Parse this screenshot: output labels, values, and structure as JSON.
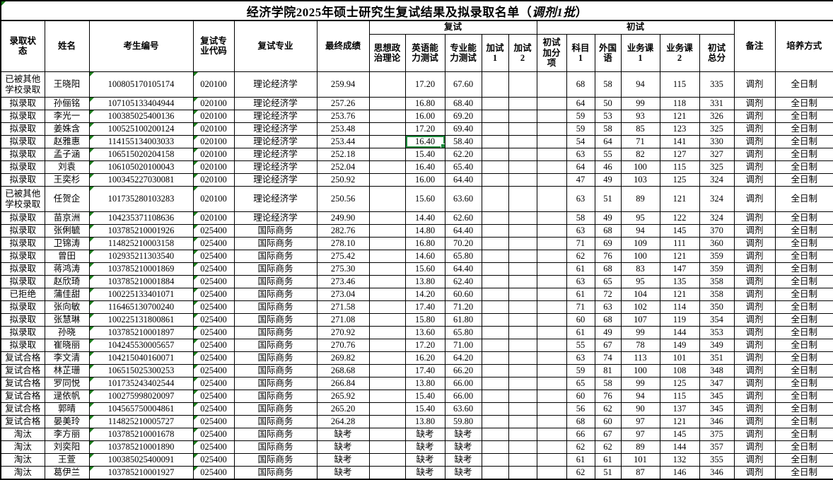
{
  "title": {
    "text": "经济学院2025年硕士研究生复试结果及拟录取名单",
    "open": "（",
    "batch": "调剂1批",
    "close": "）"
  },
  "colors": {
    "selection_border_green": "#1e8b3e",
    "indicator_triangle_green": "#1d7f1d",
    "grid_line": "#000000"
  },
  "header": {
    "left": [
      "录取状\n态",
      "姓名",
      "考生编号",
      "复试专\n业代码",
      "复试专业",
      "最终成绩"
    ],
    "groups": [
      {
        "label": "复试",
        "cols": [
          "思想政\n治理论",
          "英语能\n力测试",
          "专业能\n力测试",
          "加试\n1",
          "加试\n2"
        ]
      },
      {
        "label": "初试",
        "cols": [
          "初试\n加分\n项",
          "科目\n1",
          "外国\n语",
          "业务课\n1",
          "业务课\n2",
          "初试\n总分"
        ]
      }
    ],
    "right": [
      "备注",
      "培养方式"
    ]
  },
  "selection": {
    "row_index": 4,
    "field": "eng",
    "value": "16.40"
  },
  "rows": [
    {
      "status": "已被其他学校录取",
      "name": "王晓阳",
      "id": "100805170105174",
      "code": "020100",
      "major": "理论经济学",
      "final": "259.94",
      "pol": "",
      "eng": "17.20",
      "prof": "67.60",
      "add1": "",
      "add2": "",
      "bonus": "",
      "sub1": "68",
      "lang": "58",
      "bus1": "94",
      "bus2": "115",
      "total": "335",
      "note": "调剂",
      "mode": "全日制"
    },
    {
      "status": "拟录取",
      "name": "孙俪铭",
      "id": "107105133404944",
      "code": "020100",
      "major": "理论经济学",
      "final": "257.26",
      "pol": "",
      "eng": "16.80",
      "prof": "68.40",
      "add1": "",
      "add2": "",
      "bonus": "",
      "sub1": "64",
      "lang": "50",
      "bus1": "99",
      "bus2": "118",
      "total": "331",
      "note": "调剂",
      "mode": "全日制"
    },
    {
      "status": "拟录取",
      "name": "李光一",
      "id": "100385025400136",
      "code": "020100",
      "major": "理论经济学",
      "final": "253.76",
      "pol": "",
      "eng": "16.00",
      "prof": "69.20",
      "add1": "",
      "add2": "",
      "bonus": "",
      "sub1": "59",
      "lang": "53",
      "bus1": "93",
      "bus2": "121",
      "total": "326",
      "note": "调剂",
      "mode": "全日制"
    },
    {
      "status": "拟录取",
      "name": "姜姝含",
      "id": "100525100200124",
      "code": "020100",
      "major": "理论经济学",
      "final": "253.48",
      "pol": "",
      "eng": "17.20",
      "prof": "69.40",
      "add1": "",
      "add2": "",
      "bonus": "",
      "sub1": "59",
      "lang": "58",
      "bus1": "85",
      "bus2": "123",
      "total": "325",
      "note": "调剂",
      "mode": "全日制"
    },
    {
      "status": "拟录取",
      "name": "赵雅惠",
      "id": "114155134003033",
      "code": "020100",
      "major": "理论经济学",
      "final": "253.44",
      "pol": "",
      "eng": "16.40",
      "prof": "58.40",
      "add1": "",
      "add2": "",
      "bonus": "",
      "sub1": "54",
      "lang": "64",
      "bus1": "71",
      "bus2": "141",
      "total": "330",
      "note": "调剂",
      "mode": "全日制"
    },
    {
      "status": "拟录取",
      "name": "孟子涵",
      "id": "106515020204158",
      "code": "020100",
      "major": "理论经济学",
      "final": "252.18",
      "pol": "",
      "eng": "15.40",
      "prof": "62.20",
      "add1": "",
      "add2": "",
      "bonus": "",
      "sub1": "63",
      "lang": "55",
      "bus1": "82",
      "bus2": "127",
      "total": "327",
      "note": "调剂",
      "mode": "全日制"
    },
    {
      "status": "拟录取",
      "name": "刘袁",
      "id": "106105020100043",
      "code": "020100",
      "major": "理论经济学",
      "final": "252.04",
      "pol": "",
      "eng": "16.40",
      "prof": "65.40",
      "add1": "",
      "add2": "",
      "bonus": "",
      "sub1": "64",
      "lang": "46",
      "bus1": "100",
      "bus2": "115",
      "total": "325",
      "note": "调剂",
      "mode": "全日制"
    },
    {
      "status": "拟录取",
      "name": "王奕杉",
      "id": "100345227030081",
      "code": "020100",
      "major": "理论经济学",
      "final": "250.92",
      "pol": "",
      "eng": "16.00",
      "prof": "64.40",
      "add1": "",
      "add2": "",
      "bonus": "",
      "sub1": "47",
      "lang": "49",
      "bus1": "103",
      "bus2": "125",
      "total": "324",
      "note": "调剂",
      "mode": "全日制"
    },
    {
      "status": "已被其他学校录取",
      "name": "任贺企",
      "id": "101735280103283",
      "code": "020100",
      "major": "理论经济学",
      "final": "250.56",
      "pol": "",
      "eng": "15.60",
      "prof": "63.60",
      "add1": "",
      "add2": "",
      "bonus": "",
      "sub1": "63",
      "lang": "51",
      "bus1": "89",
      "bus2": "121",
      "total": "324",
      "note": "调剂",
      "mode": "全日制"
    },
    {
      "status": "拟录取",
      "name": "苗京洲",
      "id": "104235371108636",
      "code": "020100",
      "major": "理论经济学",
      "final": "249.90",
      "pol": "",
      "eng": "14.40",
      "prof": "62.60",
      "add1": "",
      "add2": "",
      "bonus": "",
      "sub1": "58",
      "lang": "49",
      "bus1": "95",
      "bus2": "122",
      "total": "324",
      "note": "调剂",
      "mode": "全日制"
    },
    {
      "status": "拟录取",
      "name": "张俐毓",
      "id": "103785210001926",
      "code": "025400",
      "major": "国际商务",
      "final": "282.76",
      "pol": "",
      "eng": "14.80",
      "prof": "64.40",
      "add1": "",
      "add2": "",
      "bonus": "",
      "sub1": "63",
      "lang": "68",
      "bus1": "94",
      "bus2": "145",
      "total": "370",
      "note": "调剂",
      "mode": "全日制"
    },
    {
      "status": "拟录取",
      "name": "卫锦涛",
      "id": "114825210003158",
      "code": "025400",
      "major": "国际商务",
      "final": "278.10",
      "pol": "",
      "eng": "16.80",
      "prof": "70.20",
      "add1": "",
      "add2": "",
      "bonus": "",
      "sub1": "71",
      "lang": "69",
      "bus1": "109",
      "bus2": "111",
      "total": "360",
      "note": "调剂",
      "mode": "全日制"
    },
    {
      "status": "拟录取",
      "name": "曾田",
      "id": "102935211303540",
      "code": "025400",
      "major": "国际商务",
      "final": "275.42",
      "pol": "",
      "eng": "14.60",
      "prof": "65.80",
      "add1": "",
      "add2": "",
      "bonus": "",
      "sub1": "62",
      "lang": "76",
      "bus1": "100",
      "bus2": "121",
      "total": "359",
      "note": "调剂",
      "mode": "全日制"
    },
    {
      "status": "拟录取",
      "name": "蒋鸿涛",
      "id": "103785210001869",
      "code": "025400",
      "major": "国际商务",
      "final": "275.30",
      "pol": "",
      "eng": "15.60",
      "prof": "64.40",
      "add1": "",
      "add2": "",
      "bonus": "",
      "sub1": "61",
      "lang": "68",
      "bus1": "83",
      "bus2": "147",
      "total": "359",
      "note": "调剂",
      "mode": "全日制"
    },
    {
      "status": "拟录取",
      "name": "赵欣琦",
      "id": "103785210001884",
      "code": "025400",
      "major": "国际商务",
      "final": "273.46",
      "pol": "",
      "eng": "13.80",
      "prof": "62.40",
      "add1": "",
      "add2": "",
      "bonus": "",
      "sub1": "63",
      "lang": "65",
      "bus1": "95",
      "bus2": "135",
      "total": "358",
      "note": "调剂",
      "mode": "全日制"
    },
    {
      "status": "已拒绝",
      "name": "蒲佳甜",
      "id": "100225133401071",
      "code": "025400",
      "major": "国际商务",
      "final": "273.04",
      "pol": "",
      "eng": "14.20",
      "prof": "60.60",
      "add1": "",
      "add2": "",
      "bonus": "",
      "sub1": "61",
      "lang": "72",
      "bus1": "104",
      "bus2": "121",
      "total": "358",
      "note": "调剂",
      "mode": "全日制"
    },
    {
      "status": "拟录取",
      "name": "张向敏",
      "id": "116465130700240",
      "code": "025400",
      "major": "国际商务",
      "final": "271.58",
      "pol": "",
      "eng": "17.40",
      "prof": "71.20",
      "add1": "",
      "add2": "",
      "bonus": "",
      "sub1": "71",
      "lang": "63",
      "bus1": "102",
      "bus2": "114",
      "total": "350",
      "note": "调剂",
      "mode": "全日制"
    },
    {
      "status": "拟录取",
      "name": "张慧琳",
      "id": "100225131800861",
      "code": "025400",
      "major": "国际商务",
      "final": "271.08",
      "pol": "",
      "eng": "15.80",
      "prof": "61.80",
      "add1": "",
      "add2": "",
      "bonus": "",
      "sub1": "60",
      "lang": "68",
      "bus1": "107",
      "bus2": "119",
      "total": "354",
      "note": "调剂",
      "mode": "全日制"
    },
    {
      "status": "拟录取",
      "name": "孙晓",
      "id": "103785210001897",
      "code": "025400",
      "major": "国际商务",
      "final": "270.92",
      "pol": "",
      "eng": "13.60",
      "prof": "65.80",
      "add1": "",
      "add2": "",
      "bonus": "",
      "sub1": "61",
      "lang": "49",
      "bus1": "99",
      "bus2": "144",
      "total": "353",
      "note": "调剂",
      "mode": "全日制"
    },
    {
      "status": "拟录取",
      "name": "崔晓丽",
      "id": "104245530005657",
      "code": "025400",
      "major": "国际商务",
      "final": "270.76",
      "pol": "",
      "eng": "17.20",
      "prof": "71.00",
      "add1": "",
      "add2": "",
      "bonus": "",
      "sub1": "55",
      "lang": "67",
      "bus1": "78",
      "bus2": "149",
      "total": "349",
      "note": "调剂",
      "mode": "全日制"
    },
    {
      "status": "复试合格",
      "name": "李文清",
      "id": "104215040160071",
      "code": "025400",
      "major": "国际商务",
      "final": "269.82",
      "pol": "",
      "eng": "16.20",
      "prof": "64.20",
      "add1": "",
      "add2": "",
      "bonus": "",
      "sub1": "63",
      "lang": "74",
      "bus1": "113",
      "bus2": "101",
      "total": "351",
      "note": "调剂",
      "mode": "全日制"
    },
    {
      "status": "复试合格",
      "name": "林芷珊",
      "id": "106515025300253",
      "code": "025400",
      "major": "国际商务",
      "final": "268.68",
      "pol": "",
      "eng": "17.40",
      "prof": "66.20",
      "add1": "",
      "add2": "",
      "bonus": "",
      "sub1": "59",
      "lang": "81",
      "bus1": "100",
      "bus2": "108",
      "total": "348",
      "note": "调剂",
      "mode": "全日制"
    },
    {
      "status": "复试合格",
      "name": "罗同悦",
      "id": "101735243402544",
      "code": "025400",
      "major": "国际商务",
      "final": "266.84",
      "pol": "",
      "eng": "13.80",
      "prof": "66.00",
      "add1": "",
      "add2": "",
      "bonus": "",
      "sub1": "65",
      "lang": "58",
      "bus1": "99",
      "bus2": "125",
      "total": "347",
      "note": "调剂",
      "mode": "全日制"
    },
    {
      "status": "复试合格",
      "name": "逯依帆",
      "id": "100275998020097",
      "code": "025400",
      "major": "国际商务",
      "final": "265.92",
      "pol": "",
      "eng": "15.40",
      "prof": "66.00",
      "add1": "",
      "add2": "",
      "bonus": "",
      "sub1": "60",
      "lang": "76",
      "bus1": "94",
      "bus2": "115",
      "total": "345",
      "note": "调剂",
      "mode": "全日制"
    },
    {
      "status": "复试合格",
      "name": "郭晴",
      "id": "104565750004861",
      "code": "025400",
      "major": "国际商务",
      "final": "265.20",
      "pol": "",
      "eng": "15.40",
      "prof": "63.60",
      "add1": "",
      "add2": "",
      "bonus": "",
      "sub1": "56",
      "lang": "62",
      "bus1": "90",
      "bus2": "137",
      "total": "345",
      "note": "调剂",
      "mode": "全日制"
    },
    {
      "status": "复试合格",
      "name": "晏美玲",
      "id": "114825210005727",
      "code": "025400",
      "major": "国际商务",
      "final": "264.28",
      "pol": "",
      "eng": "13.80",
      "prof": "59.80",
      "add1": "",
      "add2": "",
      "bonus": "",
      "sub1": "68",
      "lang": "60",
      "bus1": "97",
      "bus2": "121",
      "total": "346",
      "note": "调剂",
      "mode": "全日制"
    },
    {
      "status": "淘汰",
      "name": "李方丽",
      "id": "103785210001678",
      "code": "025400",
      "major": "国际商务",
      "final": "缺考",
      "pol": "",
      "eng": "缺考",
      "prof": "缺考",
      "add1": "",
      "add2": "",
      "bonus": "",
      "sub1": "66",
      "lang": "67",
      "bus1": "97",
      "bus2": "145",
      "total": "375",
      "note": "调剂",
      "mode": "全日制"
    },
    {
      "status": "淘汰",
      "name": "刘奕阳",
      "id": "103785210001890",
      "code": "025400",
      "major": "国际商务",
      "final": "缺考",
      "pol": "",
      "eng": "缺考",
      "prof": "缺考",
      "add1": "",
      "add2": "",
      "bonus": "",
      "sub1": "62",
      "lang": "62",
      "bus1": "89",
      "bus2": "144",
      "total": "357",
      "note": "调剂",
      "mode": "全日制"
    },
    {
      "status": "淘汰",
      "name": "王萱",
      "id": "100385025400091",
      "code": "025400",
      "major": "国际商务",
      "final": "缺考",
      "pol": "",
      "eng": "缺考",
      "prof": "缺考",
      "add1": "",
      "add2": "",
      "bonus": "",
      "sub1": "61",
      "lang": "61",
      "bus1": "101",
      "bus2": "132",
      "total": "355",
      "note": "调剂",
      "mode": "全日制"
    },
    {
      "status": "淘汰",
      "name": "葛伊兰",
      "id": "103785210001927",
      "code": "025400",
      "major": "国际商务",
      "final": "缺考",
      "pol": "",
      "eng": "缺考",
      "prof": "缺考",
      "add1": "",
      "add2": "",
      "bonus": "",
      "sub1": "62",
      "lang": "51",
      "bus1": "87",
      "bus2": "146",
      "total": "346",
      "note": "调剂",
      "mode": "全日制"
    }
  ]
}
